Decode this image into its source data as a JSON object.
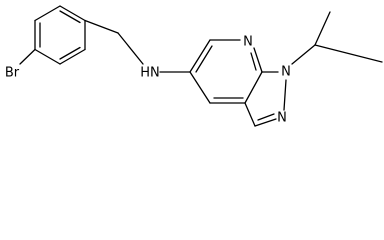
{
  "atoms": [
    {
      "label": "Br"
    },
    {
      "label": "HN"
    },
    {
      "label": "N"
    },
    {
      "label": "N"
    },
    {
      "label": "N"
    }
  ]
}
